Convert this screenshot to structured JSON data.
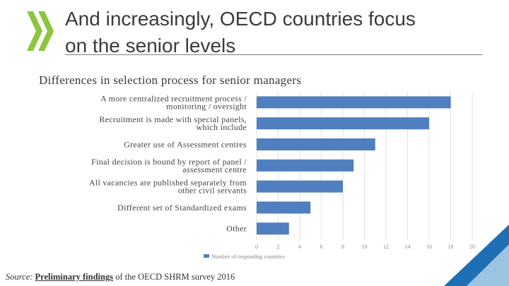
{
  "slide": {
    "title_line1": "And increasingly, OECD countries focus",
    "title_line2": "on the senior levels",
    "chart_heading": "Differences in selection process for senior managers",
    "source_label": "Source:",
    "source_link": "Preliminary findings",
    "source_rest": "of the OECD SHRM survey 2016"
  },
  "colors": {
    "bar": "#4f7fbf",
    "logo": "#8cc63f",
    "corner_blue": "#1f6fb5",
    "corner_light": "#9bc4e2"
  },
  "chart_data": {
    "type": "bar",
    "orientation": "horizontal",
    "categories": [
      [
        "A more centralized recruitment process /",
        "monitoring / oversight"
      ],
      [
        "Recruitment is made with special panels,",
        "which include"
      ],
      [
        "Greater use of Assessment centres"
      ],
      [
        "Final decision is bound by report of panel /",
        "assessment centre"
      ],
      [
        "All vacancies are published separately from",
        "other civil servants"
      ],
      [
        "Different set of Standardized exams"
      ],
      [
        "Other"
      ]
    ],
    "series": [
      {
        "name": "Number of responding countries",
        "values": [
          18,
          16,
          11,
          9,
          8,
          5,
          3
        ]
      }
    ],
    "xlim": [
      0,
      20
    ],
    "ticks": [
      "0",
      "2",
      "4",
      "6",
      "8",
      "10",
      "12",
      "14",
      "16",
      "18",
      "20"
    ],
    "grid": true,
    "legend": "bottom-left"
  }
}
